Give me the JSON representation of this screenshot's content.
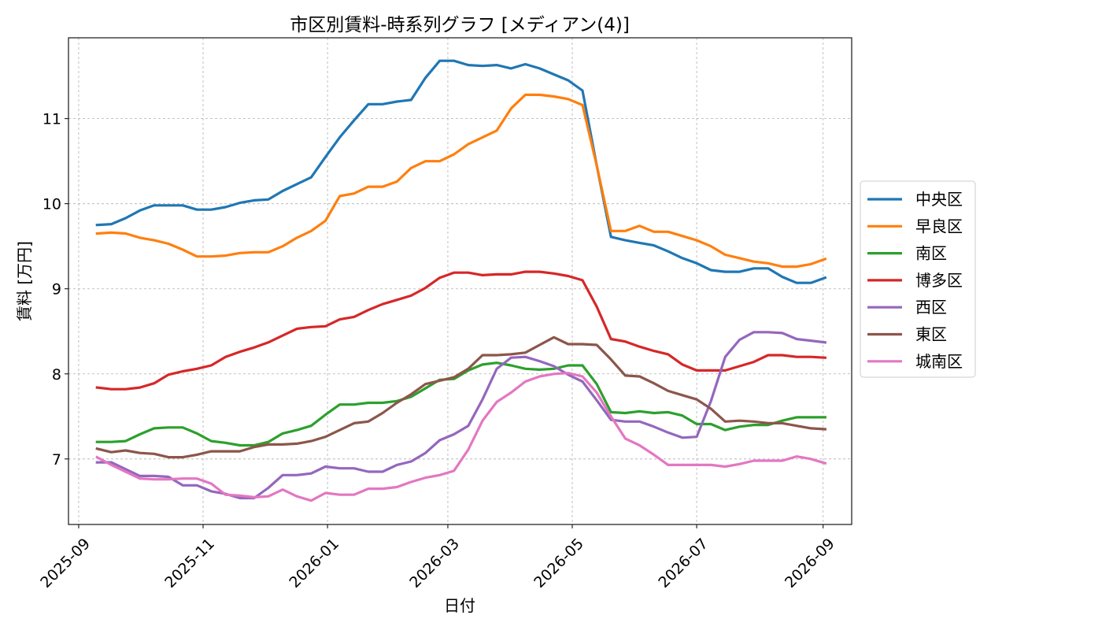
{
  "chart_data": {
    "type": "line",
    "title": "市区別賃料-時系列グラフ [メディアン(4)]",
    "xlabel": "日付",
    "ylabel": "賃料 [万円]",
    "xlim": [
      "2025-08-27",
      "2026-09-15"
    ],
    "ylim": [
      6.23,
      11.95
    ],
    "xticks": [
      "2025-09-01",
      "2025-11-01",
      "2026-01-01",
      "2026-03-01",
      "2026-05-01",
      "2026-07-01",
      "2026-09-01"
    ],
    "xtick_labels": [
      "2025-09",
      "2025-11",
      "2026-01",
      "2026-03",
      "2026-05",
      "2026-07",
      "2026-09"
    ],
    "yticks": [
      7,
      8,
      9,
      10,
      11
    ],
    "ytick_labels": [
      "7",
      "8",
      "9",
      "10",
      "11"
    ],
    "grid": true,
    "legend_position": "outside-right",
    "x": [
      "2025-09-10",
      "2025-09-17",
      "2025-09-24",
      "2025-10-01",
      "2025-10-08",
      "2025-10-15",
      "2025-10-22",
      "2025-10-29",
      "2025-11-05",
      "2025-11-12",
      "2025-11-19",
      "2025-11-26",
      "2025-12-03",
      "2025-12-10",
      "2025-12-17",
      "2025-12-24",
      "2025-12-31",
      "2026-01-07",
      "2026-01-14",
      "2026-01-21",
      "2026-01-28",
      "2026-02-04",
      "2026-02-11",
      "2026-02-18",
      "2026-02-25",
      "2026-03-04",
      "2026-03-11",
      "2026-03-18",
      "2026-03-25",
      "2026-04-01",
      "2026-04-08",
      "2026-04-15",
      "2026-04-22",
      "2026-04-29",
      "2026-05-06",
      "2026-05-13",
      "2026-05-20",
      "2026-05-27",
      "2026-06-03",
      "2026-06-10",
      "2026-06-17",
      "2026-06-24",
      "2026-07-01",
      "2026-07-08",
      "2026-07-15",
      "2026-07-22",
      "2026-07-29",
      "2026-08-05",
      "2026-08-12",
      "2026-08-19",
      "2026-08-26",
      "2026-09-02"
    ],
    "series": [
      {
        "name": "中央区",
        "color": "#1f77b4",
        "values": [
          9.75,
          9.76,
          9.83,
          9.92,
          9.98,
          9.98,
          9.98,
          9.93,
          9.93,
          9.96,
          10.01,
          10.04,
          10.05,
          10.15,
          10.23,
          10.31,
          10.55,
          10.78,
          10.98,
          11.17,
          11.17,
          11.2,
          11.22,
          11.48,
          11.68,
          11.68,
          11.63,
          11.62,
          11.63,
          11.59,
          11.64,
          11.59,
          11.52,
          11.45,
          11.33,
          10.45,
          9.61,
          9.57,
          9.54,
          9.51,
          9.44,
          9.36,
          9.3,
          9.22,
          9.2,
          9.2,
          9.24,
          9.24,
          9.14,
          9.07,
          9.07,
          9.13
        ]
      },
      {
        "name": "早良区",
        "color": "#ff7f0e",
        "values": [
          9.65,
          9.66,
          9.65,
          9.6,
          9.57,
          9.53,
          9.46,
          9.38,
          9.38,
          9.39,
          9.42,
          9.43,
          9.43,
          9.5,
          9.6,
          9.68,
          9.8,
          10.09,
          10.12,
          10.2,
          10.2,
          10.26,
          10.42,
          10.5,
          10.5,
          10.58,
          10.7,
          10.78,
          10.86,
          11.12,
          11.28,
          11.28,
          11.26,
          11.23,
          11.16,
          10.45,
          9.68,
          9.68,
          9.74,
          9.67,
          9.67,
          9.62,
          9.57,
          9.5,
          9.4,
          9.36,
          9.32,
          9.3,
          9.26,
          9.26,
          9.29,
          9.35
        ]
      },
      {
        "name": "南区",
        "color": "#2ca02c",
        "values": [
          7.2,
          7.2,
          7.21,
          7.29,
          7.36,
          7.37,
          7.37,
          7.3,
          7.21,
          7.19,
          7.16,
          7.16,
          7.2,
          7.3,
          7.34,
          7.39,
          7.52,
          7.64,
          7.64,
          7.66,
          7.66,
          7.68,
          7.73,
          7.83,
          7.93,
          7.94,
          8.04,
          8.11,
          8.13,
          8.1,
          8.06,
          8.05,
          8.06,
          8.1,
          8.1,
          7.88,
          7.55,
          7.54,
          7.56,
          7.54,
          7.55,
          7.51,
          7.41,
          7.41,
          7.34,
          7.38,
          7.4,
          7.4,
          7.45,
          7.49,
          7.49,
          7.49
        ]
      },
      {
        "name": "博多区",
        "color": "#d62728",
        "values": [
          7.84,
          7.82,
          7.82,
          7.84,
          7.89,
          7.99,
          8.03,
          8.06,
          8.1,
          8.2,
          8.26,
          8.31,
          8.37,
          8.45,
          8.53,
          8.55,
          8.56,
          8.64,
          8.67,
          8.75,
          8.82,
          8.87,
          8.92,
          9.01,
          9.13,
          9.19,
          9.19,
          9.16,
          9.17,
          9.17,
          9.2,
          9.2,
          9.18,
          9.15,
          9.1,
          8.79,
          8.41,
          8.38,
          8.32,
          8.27,
          8.23,
          8.11,
          8.04,
          8.04,
          8.04,
          8.09,
          8.14,
          8.22,
          8.22,
          8.2,
          8.2,
          8.19
        ]
      },
      {
        "name": "西区",
        "color": "#9467bd",
        "values": [
          6.96,
          6.96,
          6.88,
          6.8,
          6.8,
          6.79,
          6.69,
          6.69,
          6.62,
          6.59,
          6.54,
          6.54,
          6.66,
          6.81,
          6.81,
          6.83,
          6.91,
          6.89,
          6.89,
          6.85,
          6.85,
          6.93,
          6.97,
          7.07,
          7.22,
          7.29,
          7.39,
          7.7,
          8.06,
          8.19,
          8.2,
          8.15,
          8.09,
          7.99,
          7.91,
          7.69,
          7.46,
          7.44,
          7.44,
          7.38,
          7.31,
          7.25,
          7.26,
          7.68,
          8.2,
          8.4,
          8.49,
          8.49,
          8.48,
          8.41,
          8.39,
          8.37
        ]
      },
      {
        "name": "東区",
        "color": "#8c564b",
        "values": [
          7.12,
          7.08,
          7.1,
          7.07,
          7.06,
          7.02,
          7.02,
          7.05,
          7.09,
          7.09,
          7.09,
          7.14,
          7.17,
          7.17,
          7.18,
          7.21,
          7.26,
          7.34,
          7.42,
          7.44,
          7.54,
          7.66,
          7.76,
          7.88,
          7.92,
          7.96,
          8.06,
          8.22,
          8.22,
          8.23,
          8.25,
          8.34,
          8.43,
          8.35,
          8.35,
          8.34,
          8.17,
          7.98,
          7.97,
          7.89,
          7.8,
          7.75,
          7.7,
          7.59,
          7.44,
          7.45,
          7.44,
          7.42,
          7.42,
          7.39,
          7.36,
          7.35
        ]
      },
      {
        "name": "城南区",
        "color": "#e377c2",
        "values": [
          7.02,
          6.93,
          6.85,
          6.77,
          6.76,
          6.76,
          6.77,
          6.77,
          6.71,
          6.58,
          6.57,
          6.55,
          6.56,
          6.64,
          6.56,
          6.51,
          6.6,
          6.58,
          6.58,
          6.65,
          6.65,
          6.67,
          6.73,
          6.78,
          6.81,
          6.86,
          7.11,
          7.45,
          7.67,
          7.78,
          7.91,
          7.97,
          8.0,
          8.01,
          7.97,
          7.78,
          7.5,
          7.24,
          7.16,
          7.05,
          6.93,
          6.93,
          6.93,
          6.93,
          6.91,
          6.94,
          6.98,
          6.98,
          6.98,
          7.03,
          7.0,
          6.95
        ]
      }
    ]
  }
}
